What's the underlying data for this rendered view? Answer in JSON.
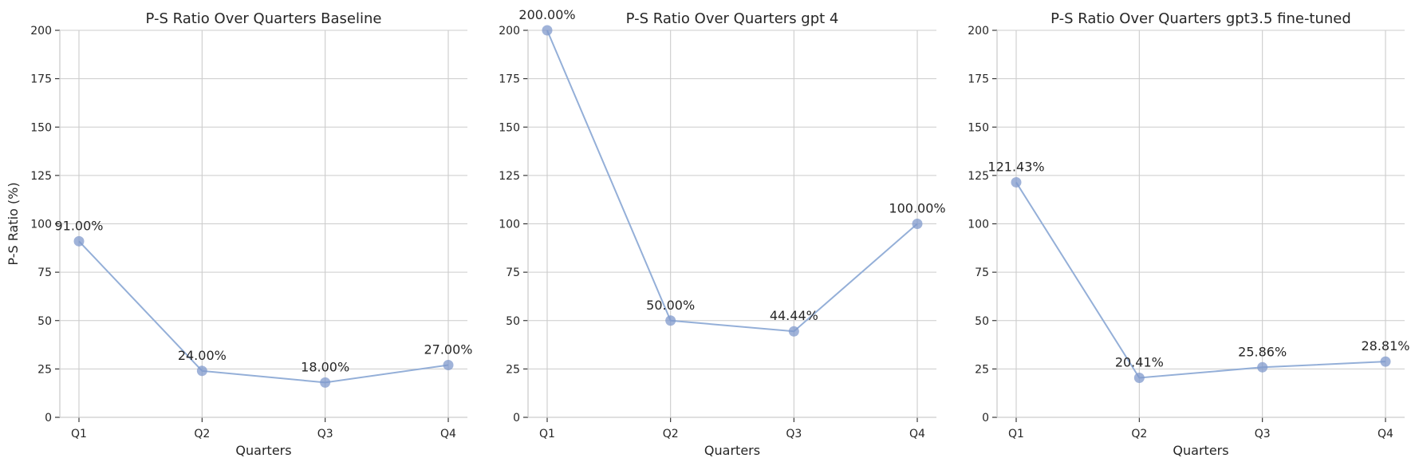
{
  "chart_data": [
    {
      "type": "line",
      "title": "P-S Ratio Over Quarters Baseline",
      "xlabel": "Quarters",
      "ylabel": "P-S Ratio (%)",
      "categories": [
        "Q1",
        "Q2",
        "Q3",
        "Q4"
      ],
      "values": [
        91.0,
        24.0,
        18.0,
        27.0
      ],
      "data_labels": [
        "91.00%",
        "24.00%",
        "18.00%",
        "27.00%"
      ],
      "ylim": [
        0,
        200
      ],
      "yticks": [
        "0",
        "25",
        "50",
        "75",
        "100",
        "125",
        "150",
        "175",
        "200"
      ],
      "grid": true
    },
    {
      "type": "line",
      "title": "P-S Ratio Over Quarters gpt 4",
      "xlabel": "Quarters",
      "ylabel": "",
      "categories": [
        "Q1",
        "Q2",
        "Q3",
        "Q4"
      ],
      "values": [
        200.0,
        50.0,
        44.44,
        100.0
      ],
      "data_labels": [
        "200.00%",
        "50.00%",
        "44.44%",
        "100.00%"
      ],
      "ylim": [
        0,
        200
      ],
      "yticks": [
        "0",
        "25",
        "50",
        "75",
        "100",
        "125",
        "150",
        "175",
        "200"
      ],
      "grid": true
    },
    {
      "type": "line",
      "title": "P-S Ratio Over Quarters gpt3.5 fine-tuned",
      "xlabel": "Quarters",
      "ylabel": "",
      "categories": [
        "Q1",
        "Q2",
        "Q3",
        "Q4"
      ],
      "values": [
        121.43,
        20.41,
        25.86,
        28.81
      ],
      "data_labels": [
        "121.43%",
        "20.41%",
        "25.86%",
        "28.81%"
      ],
      "ylim": [
        0,
        200
      ],
      "yticks": [
        "0",
        "25",
        "50",
        "75",
        "100",
        "125",
        "150",
        "175",
        "200"
      ],
      "grid": true
    }
  ],
  "colors": {
    "series": "#8eabd6",
    "marker": "#8099cc",
    "grid": "#cccccc",
    "text": "#262626"
  }
}
